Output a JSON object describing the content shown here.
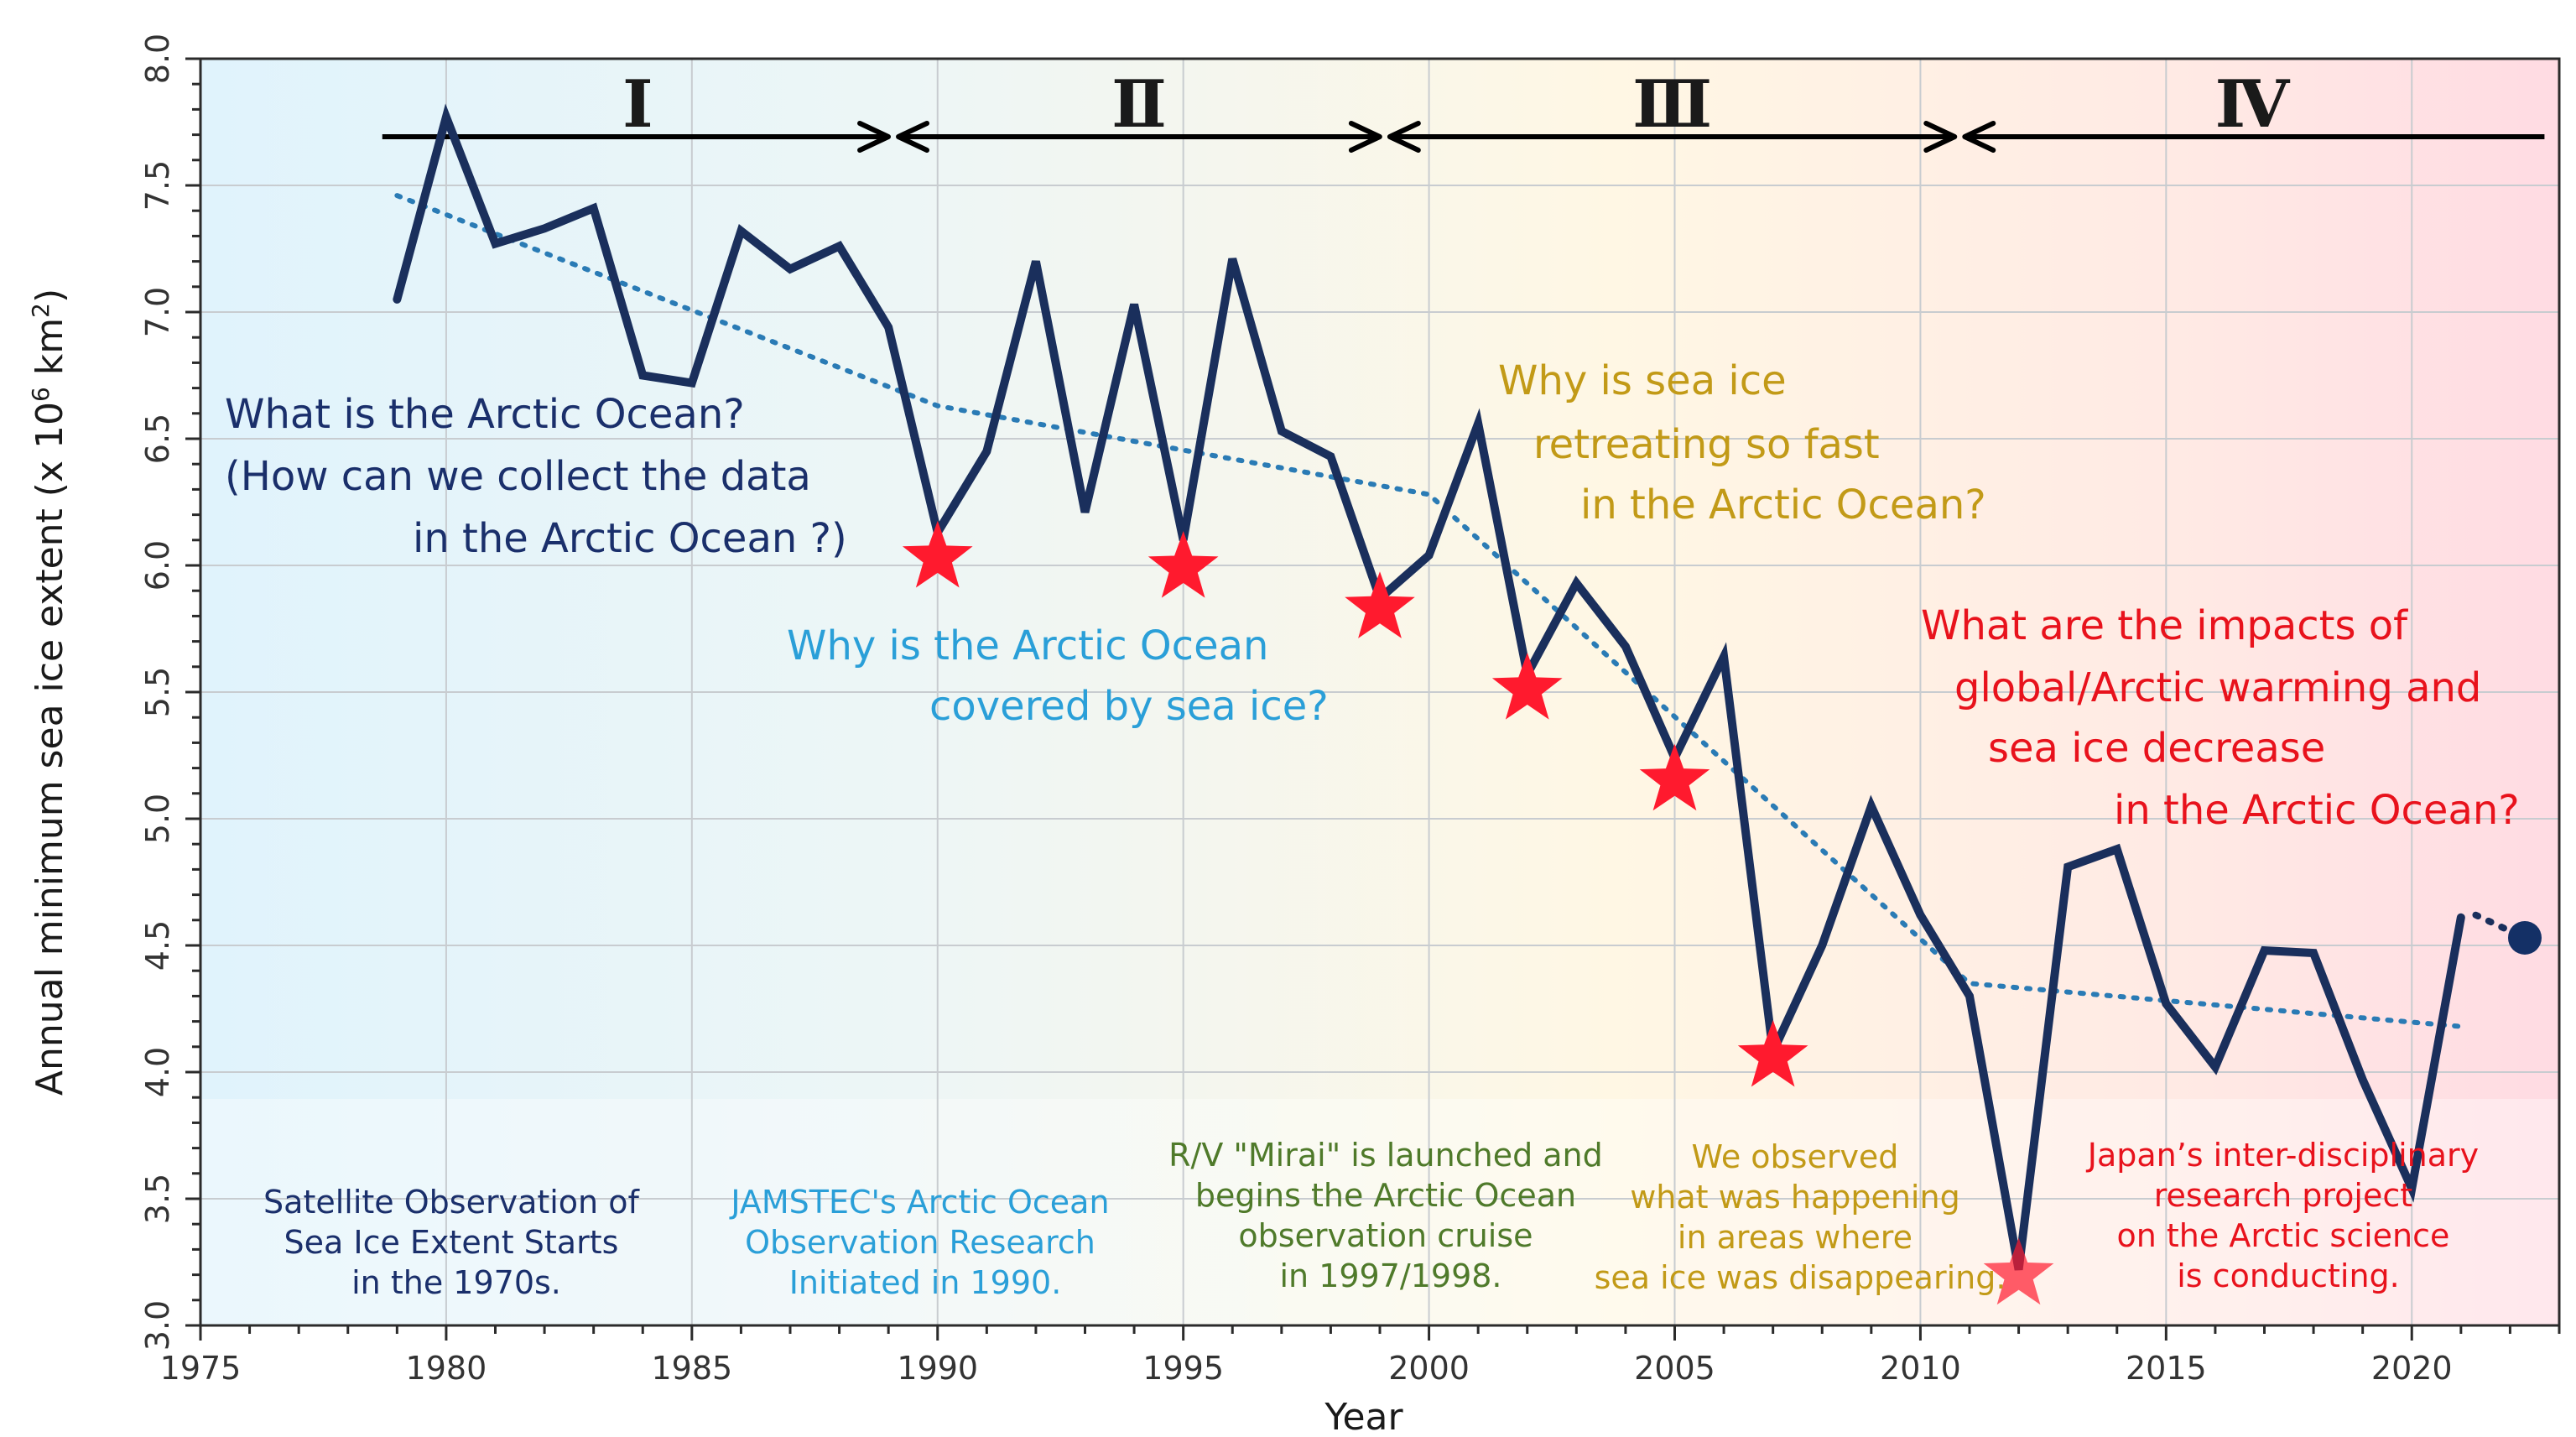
{
  "chart_data": {
    "type": "line",
    "xlabel": "Year",
    "ylabel": "Annual minimum sea ice extent (x 10",
    "ylabel_sup": "6",
    "ylabel_unit": " km",
    "ylabel_unit_sup": "2",
    "ylabel_close": ")",
    "xlim": [
      1975,
      2023
    ],
    "ylim": [
      3.0,
      8.0
    ],
    "x_ticks": [
      1975,
      1980,
      1985,
      1990,
      1995,
      2000,
      2005,
      2010,
      2015,
      2020
    ],
    "x_tick_labels": [
      "1975",
      "1980",
      "1985",
      "1990",
      "1995",
      "2000",
      "2005",
      "2010",
      "2015",
      "2020"
    ],
    "y_ticks": [
      3.0,
      3.5,
      4.0,
      4.5,
      5.0,
      5.5,
      6.0,
      6.5,
      7.0,
      7.5,
      8.0
    ],
    "y_tick_labels": [
      "3.0",
      "3.5",
      "4.0",
      "4.5",
      "5.0",
      "5.5",
      "6.0",
      "6.5",
      "7.0",
      "7.5",
      "8.0"
    ],
    "grid": true,
    "series": [
      {
        "values_x": [
          1979,
          1980,
          1981,
          1982,
          1983,
          1984,
          1985,
          1986,
          1987,
          1988,
          1989,
          1990,
          1991,
          1992,
          1993,
          1994,
          1995,
          1996,
          1997,
          1998,
          1999,
          2000,
          2001,
          2002,
          2003,
          2004,
          2005,
          2006,
          2007,
          2008,
          2009,
          2010,
          2011,
          2012,
          2013,
          2014,
          2015,
          2016,
          2017,
          2018,
          2019,
          2020,
          2021
        ],
        "values_y": [
          7.05,
          7.77,
          7.27,
          7.33,
          7.41,
          6.75,
          6.72,
          7.32,
          7.17,
          7.26,
          6.94,
          6.13,
          6.45,
          7.2,
          6.21,
          7.03,
          6.1,
          7.21,
          6.53,
          6.43,
          5.87,
          6.04,
          6.56,
          5.57,
          5.93,
          5.68,
          5.24,
          5.64,
          4.08,
          4.5,
          5.05,
          4.62,
          4.3,
          3.22,
          4.81,
          4.88,
          4.27,
          4.02,
          4.48,
          4.47,
          3.97,
          3.54,
          4.61
        ],
        "color": "#1a2f5c"
      },
      {
        "values_x": [
          1979,
          1990,
          2000,
          2011,
          2021
        ],
        "values_y": [
          7.46,
          6.63,
          6.28,
          4.35,
          4.18
        ],
        "style": "dotted",
        "color": "#2a7bb5"
      },
      {
        "values_x": [
          2021.3,
          2022.3
        ],
        "values_y": [
          4.62,
          4.53
        ],
        "style": "dotted",
        "color": "#1a2f5c",
        "end_marker": "circle"
      }
    ],
    "star_markers": {
      "x": [
        1990,
        1995,
        1999,
        2002,
        2005,
        2007,
        2012
      ],
      "y": [
        6.03,
        5.99,
        5.83,
        5.51,
        5.15,
        4.06,
        3.2
      ],
      "color": "#ff1a2e"
    },
    "periods": [
      {
        "label": "Ⅰ",
        "start": 1978.7,
        "end": 1989.1
      },
      {
        "label": "Ⅱ",
        "start": 1989.1,
        "end": 1999.1
      },
      {
        "label": "Ⅲ",
        "start": 1999.1,
        "end": 2010.8
      },
      {
        "label": "Ⅳ",
        "start": 2010.8,
        "end": 2022.7
      }
    ],
    "annotations": {
      "q1": {
        "lines": [
          "What is the Arctic Ocean?",
          "(How can we collect the data",
          "in the Arctic Ocean ?)"
        ],
        "color": "#1a2f6b"
      },
      "q2": {
        "lines": [
          "Why is the Arctic Ocean",
          "covered by sea ice?"
        ],
        "color": "#2a9fd8"
      },
      "q3": {
        "lines": [
          "Why is sea ice",
          "retreating so fast",
          "in the Arctic Ocean?"
        ],
        "color": "#c29a17"
      },
      "q4": {
        "lines": [
          "What are the impacts of",
          "global/Arctic warming and",
          "sea ice decrease",
          "in the Arctic Ocean?"
        ],
        "color": "#e8121c"
      },
      "n1": {
        "lines": [
          "Satellite Observation of",
          "Sea Ice Extent Starts",
          "in the 1970s."
        ],
        "color": "#1a2f6b"
      },
      "n2": {
        "lines": [
          "JAMSTEC's Arctic Ocean",
          "Observation Research",
          "Initiated in 1990."
        ],
        "color": "#2a9fd8"
      },
      "n3": {
        "lines": [
          "R/V \"Mirai\"  is launched and",
          "begins the Arctic Ocean",
          "observation cruise",
          "in 1997/1998."
        ],
        "color": "#4f7a2a"
      },
      "n4": {
        "lines": [
          "We observed",
          "what was happening",
          "in areas where",
          "sea ice was disappearing."
        ],
        "color": "#c29a17"
      },
      "n5": {
        "lines": [
          "Japan’s inter-disciplinary",
          "research project",
          "on the Arctic science",
          "is conducting."
        ],
        "color": "#e8121c"
      }
    },
    "background_gradient": [
      "#e0f3fc",
      "#edf6f6",
      "#fff7e4",
      "#ffe9e4",
      "#ffdbe3"
    ]
  }
}
